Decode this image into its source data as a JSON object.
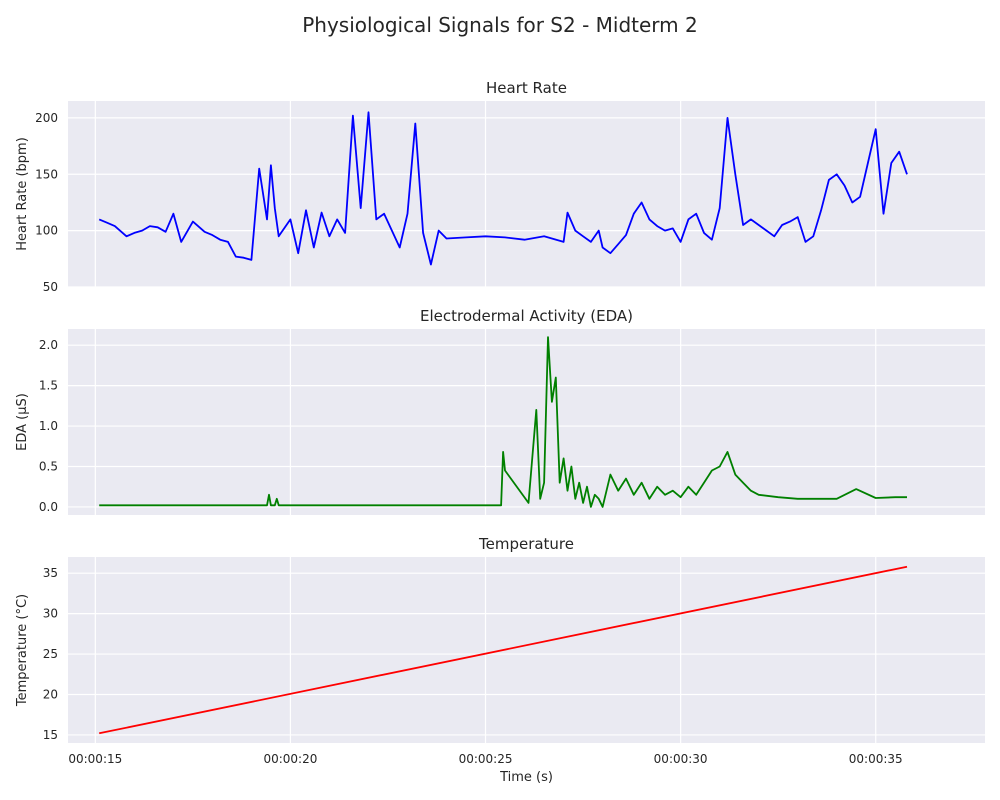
{
  "figure": {
    "title": "Physiological Signals for S2 - Midterm 2",
    "background": "#ffffff",
    "axes_background": "#eaeaf2",
    "grid_color": "#ffffff"
  },
  "chart_data": [
    {
      "type": "line",
      "title": "Heart Rate",
      "xlabel": "",
      "ylabel": "Heart Rate (bpm)",
      "color": "#0000ff",
      "grid": true,
      "xlim": [
        14.3,
        37.8
      ],
      "ylim": [
        50,
        215
      ],
      "x_ticks": [
        15,
        20,
        25,
        30,
        35
      ],
      "x_tick_labels": [],
      "y_ticks": [
        50,
        100,
        150,
        200
      ],
      "y_tick_labels": [
        "50",
        "100",
        "150",
        "200"
      ],
      "series": [
        {
          "x": [
            15.1,
            15.3,
            15.5,
            15.8,
            16.0,
            16.2,
            16.4,
            16.6,
            16.8,
            17.0,
            17.2,
            17.5,
            17.8,
            18.0,
            18.2,
            18.4,
            18.6,
            18.8,
            19.0,
            19.2,
            19.4,
            19.5,
            19.6,
            19.7,
            19.8,
            19.9,
            20.0,
            20.2,
            20.4,
            20.6,
            20.8,
            21.0,
            21.2,
            21.4,
            21.6,
            21.8,
            22.0,
            22.2,
            22.4,
            22.6,
            22.8,
            23.0,
            23.2,
            23.4,
            23.6,
            23.8,
            24.0,
            24.5,
            25.0,
            25.5,
            26.0,
            26.5,
            27.0,
            27.1,
            27.3,
            27.5,
            27.7,
            27.9,
            28.0,
            28.2,
            28.4,
            28.6,
            28.8,
            29.0,
            29.2,
            29.4,
            29.6,
            29.8,
            30.0,
            30.2,
            30.4,
            30.6,
            30.8,
            31.0,
            31.2,
            31.4,
            31.6,
            31.8,
            32.0,
            32.2,
            32.4,
            32.6,
            32.8,
            33.0,
            33.2,
            33.4,
            33.6,
            33.8,
            34.0,
            34.2,
            34.4,
            34.6,
            34.8,
            35.0,
            35.2,
            35.4,
            35.6,
            35.8
          ],
          "values": [
            110,
            107,
            104,
            95,
            98,
            100,
            104,
            103,
            99,
            115,
            90,
            108,
            99,
            96,
            92,
            90,
            77,
            76,
            74,
            155,
            110,
            158,
            120,
            95,
            100,
            105,
            110,
            80,
            118,
            85,
            116,
            95,
            110,
            98,
            202,
            120,
            205,
            110,
            115,
            100,
            85,
            115,
            195,
            98,
            70,
            100,
            93,
            94,
            95,
            94,
            92,
            95,
            90,
            116,
            100,
            95,
            90,
            100,
            85,
            80,
            88,
            96,
            115,
            125,
            110,
            104,
            100,
            102,
            90,
            110,
            115,
            98,
            92,
            120,
            200,
            150,
            105,
            110,
            105,
            100,
            95,
            105,
            108,
            112,
            90,
            95,
            118,
            145,
            150,
            140,
            125,
            130,
            160,
            190,
            115,
            160,
            170,
            150
          ]
        }
      ]
    },
    {
      "type": "line",
      "title": "Electrodermal Activity (EDA)",
      "xlabel": "",
      "ylabel": "EDA (μS)",
      "color": "#008000",
      "grid": true,
      "xlim": [
        14.3,
        37.8
      ],
      "ylim": [
        -0.1,
        2.2
      ],
      "x_ticks": [
        15,
        20,
        25,
        30,
        35
      ],
      "x_tick_labels": [],
      "y_ticks": [
        0.0,
        0.5,
        1.0,
        1.5,
        2.0
      ],
      "y_tick_labels": [
        "0.0",
        "0.5",
        "1.0",
        "1.5",
        "2.0"
      ],
      "series": [
        {
          "x": [
            15.1,
            16.0,
            17.0,
            18.0,
            19.0,
            19.4,
            19.45,
            19.5,
            19.6,
            19.65,
            19.7,
            20.0,
            21.0,
            22.0,
            23.0,
            24.0,
            25.0,
            25.4,
            25.45,
            25.5,
            26.1,
            26.3,
            26.4,
            26.5,
            26.6,
            26.7,
            26.8,
            26.9,
            27.0,
            27.1,
            27.2,
            27.3,
            27.4,
            27.5,
            27.6,
            27.7,
            27.8,
            27.9,
            28.0,
            28.2,
            28.4,
            28.6,
            28.8,
            29.0,
            29.2,
            29.4,
            29.6,
            29.8,
            30.0,
            30.2,
            30.4,
            30.6,
            30.8,
            31.0,
            31.2,
            31.4,
            31.6,
            31.8,
            32.0,
            32.5,
            33.0,
            33.5,
            34.0,
            34.5,
            35.0,
            35.5,
            35.8
          ],
          "values": [
            0.02,
            0.02,
            0.02,
            0.02,
            0.02,
            0.02,
            0.15,
            0.02,
            0.02,
            0.1,
            0.02,
            0.02,
            0.02,
            0.02,
            0.02,
            0.02,
            0.02,
            0.02,
            0.68,
            0.45,
            0.05,
            1.2,
            0.1,
            0.3,
            2.1,
            1.3,
            1.6,
            0.3,
            0.6,
            0.2,
            0.5,
            0.1,
            0.3,
            0.05,
            0.25,
            0.0,
            0.15,
            0.1,
            0.0,
            0.4,
            0.2,
            0.35,
            0.15,
            0.3,
            0.1,
            0.25,
            0.15,
            0.2,
            0.12,
            0.25,
            0.15,
            0.3,
            0.45,
            0.5,
            0.68,
            0.4,
            0.3,
            0.2,
            0.15,
            0.12,
            0.1,
            0.1,
            0.1,
            0.22,
            0.11,
            0.12,
            0.12
          ]
        }
      ]
    },
    {
      "type": "line",
      "title": "Temperature",
      "xlabel": "Time (s)",
      "ylabel": "Temperature (°C)",
      "color": "#ff0000",
      "grid": true,
      "xlim": [
        14.3,
        37.8
      ],
      "ylim": [
        14.0,
        37.0
      ],
      "x_ticks": [
        15,
        20,
        25,
        30,
        35
      ],
      "x_tick_labels": [
        "00:00:15",
        "00:00:20",
        "00:00:25",
        "00:00:30",
        "00:00:35"
      ],
      "y_ticks": [
        15,
        20,
        25,
        30,
        35
      ],
      "y_tick_labels": [
        "15",
        "20",
        "25",
        "30",
        "35"
      ],
      "series": [
        {
          "x": [
            15.1,
            35.8
          ],
          "values": [
            15.2,
            35.8
          ]
        }
      ]
    }
  ]
}
